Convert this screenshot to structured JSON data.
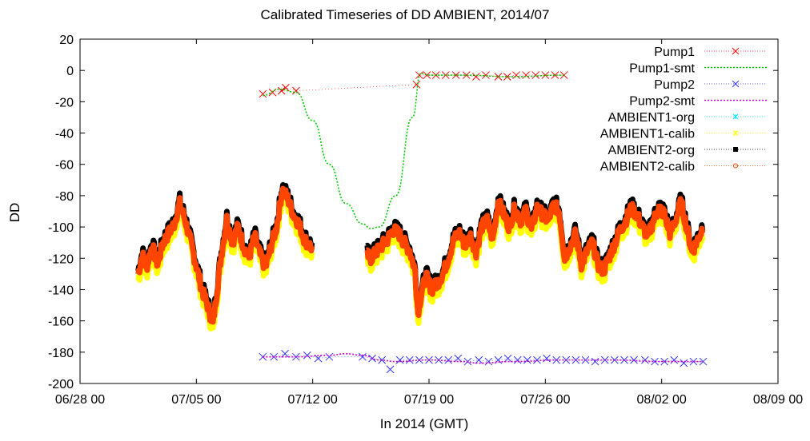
{
  "chart_data": {
    "type": "scatter",
    "title": "Calibrated Timeseries of DD AMBIENT, 2014/07",
    "xlabel": "In 2014 (GMT)",
    "ylabel": "DD",
    "xlim": [
      "2014-06-28T00:00",
      "2014-08-09T00:00"
    ],
    "ylim": [
      -200,
      20
    ],
    "x_ticks": [
      "06/28 00",
      "07/05 00",
      "07/12 00",
      "07/19 00",
      "07/26 00",
      "08/02 00",
      "08/09 00"
    ],
    "y_ticks": [
      20,
      0,
      -20,
      -40,
      -60,
      -80,
      -100,
      -120,
      -140,
      -160,
      -180,
      -200
    ],
    "grid": false,
    "legend_position": "top-right",
    "legend": [
      "Pump1",
      "Pump1-smt",
      "Pump2",
      "Pump2-smt",
      "AMBIENT1-org",
      "AMBIENT1-calib",
      "AMBIENT2-org",
      "AMBIENT2-calib"
    ],
    "colors": {
      "Pump1": "#ff0000",
      "Pump1-smt": "#00cc00",
      "Pump2": "#3333ff",
      "Pump2-smt": "#cc00cc",
      "AMBIENT1-org": "#00e5ff",
      "AMBIENT1-calib": "#ffff00",
      "AMBIENT2-org": "#000000",
      "AMBIENT2-calib": "#ff4500"
    },
    "series": [
      {
        "name": "Pump1",
        "marker": "x",
        "points": [
          [
            "2014-07-09T00:00",
            -15
          ],
          [
            "2014-07-09T14:00",
            -14
          ],
          [
            "2014-07-10T03:00",
            -13
          ],
          [
            "2014-07-10T09:00",
            -11
          ],
          [
            "2014-07-11T00:00",
            -13
          ],
          [
            "2014-07-18T06:00",
            -9
          ],
          [
            "2014-07-18T10:00",
            -3
          ],
          [
            "2014-07-18T21:00",
            -3
          ],
          [
            "2014-07-19T10:00",
            -3
          ],
          [
            "2014-07-20T00:00",
            -3
          ],
          [
            "2014-07-20T15:00",
            -3
          ],
          [
            "2014-07-21T06:00",
            -3
          ],
          [
            "2014-07-21T20:00",
            -4
          ],
          [
            "2014-07-22T10:00",
            -3
          ],
          [
            "2014-07-23T04:00",
            -4
          ],
          [
            "2014-07-23T17:00",
            -4
          ],
          [
            "2014-07-24T06:00",
            -3
          ],
          [
            "2014-07-24T20:00",
            -3
          ],
          [
            "2014-07-25T10:00",
            -3
          ],
          [
            "2014-07-26T00:00",
            -3
          ],
          [
            "2014-07-26T14:00",
            -3
          ],
          [
            "2014-07-27T03:00",
            -3
          ]
        ]
      },
      {
        "name": "Pump1-smt",
        "points": [
          [
            "2014-07-09T00:00",
            -16
          ],
          [
            "2014-07-10T00:00",
            -12
          ],
          [
            "2014-07-11T00:00",
            -14
          ],
          [
            "2014-07-12T00:00",
            -32
          ],
          [
            "2014-07-13T00:00",
            -60
          ],
          [
            "2014-07-14T00:00",
            -85
          ],
          [
            "2014-07-15T00:00",
            -98
          ],
          [
            "2014-07-15T12:00",
            -101
          ],
          [
            "2014-07-16T00:00",
            -100
          ],
          [
            "2014-07-17T00:00",
            -80
          ],
          [
            "2014-07-18T00:00",
            -30
          ],
          [
            "2014-07-18T12:00",
            -2
          ],
          [
            "2014-07-19T00:00",
            -3
          ],
          [
            "2014-07-21T00:00",
            -3
          ],
          [
            "2014-07-24T00:00",
            -4
          ],
          [
            "2014-07-27T03:00",
            -3
          ]
        ]
      },
      {
        "name": "Pump2",
        "marker": "x",
        "points": [
          [
            "2014-07-09T00:00",
            -183
          ],
          [
            "2014-07-09T16:00",
            -183
          ],
          [
            "2014-07-10T08:00",
            -181
          ],
          [
            "2014-07-11T00:00",
            -183
          ],
          [
            "2014-07-11T16:00",
            -182
          ],
          [
            "2014-07-12T08:00",
            -184
          ],
          [
            "2014-07-13T00:00",
            -183
          ],
          [
            "2014-07-15T00:00",
            -183
          ],
          [
            "2014-07-15T14:00",
            -184
          ],
          [
            "2014-07-16T04:00",
            -185
          ],
          [
            "2014-07-16T16:00",
            -191
          ],
          [
            "2014-07-17T06:00",
            -185
          ],
          [
            "2014-07-17T20:00",
            -185
          ],
          [
            "2014-07-18T10:00",
            -185
          ],
          [
            "2014-07-19T00:00",
            -185
          ],
          [
            "2014-07-19T14:00",
            -185
          ],
          [
            "2014-07-20T04:00",
            -185
          ],
          [
            "2014-07-20T18:00",
            -184
          ],
          [
            "2014-07-21T08:00",
            -186
          ],
          [
            "2014-07-22T00:00",
            -185
          ],
          [
            "2014-07-22T14:00",
            -186
          ],
          [
            "2014-07-23T04:00",
            -185
          ],
          [
            "2014-07-23T18:00",
            -184
          ],
          [
            "2014-07-24T08:00",
            -185
          ],
          [
            "2014-07-24T22:00",
            -185
          ],
          [
            "2014-07-25T12:00",
            -185
          ],
          [
            "2014-07-26T02:00",
            -184
          ],
          [
            "2014-07-26T16:00",
            -185
          ],
          [
            "2014-07-27T06:00",
            -185
          ],
          [
            "2014-07-27T20:00",
            -185
          ],
          [
            "2014-07-28T10:00",
            -185
          ],
          [
            "2014-07-29T00:00",
            -186
          ],
          [
            "2014-07-29T14:00",
            -185
          ],
          [
            "2014-07-30T04:00",
            -185
          ],
          [
            "2014-07-30T18:00",
            -185
          ],
          [
            "2014-07-31T08:00",
            -185
          ],
          [
            "2014-08-01T00:00",
            -185
          ],
          [
            "2014-08-01T14:00",
            -186
          ],
          [
            "2014-08-02T04:00",
            -186
          ],
          [
            "2014-08-02T18:00",
            -185
          ],
          [
            "2014-08-03T08:00",
            -187
          ],
          [
            "2014-08-03T22:00",
            -186
          ],
          [
            "2014-08-04T12:00",
            -186
          ]
        ]
      },
      {
        "name": "Pump2-smt",
        "points": [
          [
            "2014-07-09T00:00",
            -183
          ],
          [
            "2014-07-11T00:00",
            -183
          ],
          [
            "2014-07-13T00:00",
            -182
          ],
          [
            "2014-07-14T00:00",
            -181
          ],
          [
            "2014-07-15T00:00",
            -182
          ],
          [
            "2014-07-16T00:00",
            -185
          ],
          [
            "2014-07-17T00:00",
            -186
          ],
          [
            "2014-07-19T00:00",
            -185
          ],
          [
            "2014-07-21T00:00",
            -186
          ],
          [
            "2014-07-22T00:00",
            -187
          ],
          [
            "2014-07-24T00:00",
            -186
          ],
          [
            "2014-07-27T00:00",
            -185
          ],
          [
            "2014-07-30T00:00",
            -185
          ],
          [
            "2014-08-02T00:00",
            -186
          ],
          [
            "2014-08-04T12:00",
            -186
          ]
        ]
      },
      {
        "name": "AMBIENT2-calib",
        "points": [
          [
            "2014-07-01T12:00",
            -130
          ],
          [
            "2014-07-01T18:00",
            -118
          ],
          [
            "2014-07-02T00:00",
            -126
          ],
          [
            "2014-07-02T08:00",
            -112
          ],
          [
            "2014-07-02T16:00",
            -124
          ],
          [
            "2014-07-03T00:00",
            -110
          ],
          [
            "2014-07-03T08:00",
            -104
          ],
          [
            "2014-07-03T16:00",
            -98
          ],
          [
            "2014-07-04T00:00",
            -85
          ],
          [
            "2014-07-04T08:00",
            -96
          ],
          [
            "2014-07-04T16:00",
            -110
          ],
          [
            "2014-07-05T00:00",
            -125
          ],
          [
            "2014-07-05T08:00",
            -140
          ],
          [
            "2014-07-05T16:00",
            -150
          ],
          [
            "2014-07-06T00:00",
            -162
          ],
          [
            "2014-07-06T06:00",
            -140
          ],
          [
            "2014-07-06T12:00",
            -118
          ],
          [
            "2014-07-06T20:00",
            -95
          ],
          [
            "2014-07-07T04:00",
            -110
          ],
          [
            "2014-07-07T12:00",
            -100
          ],
          [
            "2014-07-07T20:00",
            -112
          ],
          [
            "2014-07-08T04:00",
            -120
          ],
          [
            "2014-07-08T12:00",
            -106
          ],
          [
            "2014-07-08T20:00",
            -118
          ],
          [
            "2014-07-09T04:00",
            -126
          ],
          [
            "2014-07-09T12:00",
            -112
          ],
          [
            "2014-07-09T20:00",
            -100
          ],
          [
            "2014-07-10T04:00",
            -76
          ],
          [
            "2014-07-10T12:00",
            -82
          ],
          [
            "2014-07-10T20:00",
            -92
          ],
          [
            "2014-07-11T04:00",
            -98
          ],
          [
            "2014-07-11T12:00",
            -108
          ],
          [
            "2014-07-11T20:00",
            -112
          ],
          [
            "2014-07-12T00:00",
            -114
          ],
          [
            "2014-07-15T06:00",
            -118
          ],
          [
            "2014-07-15T12:00",
            -120
          ],
          [
            "2014-07-16T12:00",
            -108
          ],
          [
            "2014-07-16T20:00",
            -102
          ],
          [
            "2014-07-17T04:00",
            -104
          ],
          [
            "2014-07-17T12:00",
            -110
          ],
          [
            "2014-07-17T20:00",
            -115
          ],
          [
            "2014-07-18T04:00",
            -128
          ],
          [
            "2014-07-18T08:00",
            -155
          ],
          [
            "2014-07-18T14:00",
            -140
          ],
          [
            "2014-07-18T20:00",
            -132
          ],
          [
            "2014-07-19T04:00",
            -140
          ],
          [
            "2014-07-19T12:00",
            -136
          ],
          [
            "2014-07-19T20:00",
            -130
          ],
          [
            "2014-07-20T04:00",
            -120
          ],
          [
            "2014-07-20T12:00",
            -108
          ],
          [
            "2014-07-20T20:00",
            -104
          ],
          [
            "2014-07-21T04:00",
            -112
          ],
          [
            "2014-07-21T12:00",
            -106
          ],
          [
            "2014-07-21T20:00",
            -116
          ],
          [
            "2014-07-22T04:00",
            -100
          ],
          [
            "2014-07-22T12:00",
            -96
          ],
          [
            "2014-07-22T20:00",
            -108
          ],
          [
            "2014-07-23T04:00",
            -84
          ],
          [
            "2014-07-23T12:00",
            -92
          ],
          [
            "2014-07-23T20:00",
            -100
          ],
          [
            "2014-07-24T04:00",
            -88
          ],
          [
            "2014-07-24T12:00",
            -96
          ],
          [
            "2014-07-24T20:00",
            -90
          ],
          [
            "2014-07-25T04:00",
            -102
          ],
          [
            "2014-07-25T12:00",
            -88
          ],
          [
            "2014-07-25T20:00",
            -92
          ],
          [
            "2014-07-26T04:00",
            -96
          ],
          [
            "2014-07-26T12:00",
            -86
          ],
          [
            "2014-07-26T20:00",
            -90
          ],
          [
            "2014-07-27T04:00",
            -120
          ],
          [
            "2014-07-27T12:00",
            -112
          ],
          [
            "2014-07-27T20:00",
            -104
          ],
          [
            "2014-07-28T04:00",
            -124
          ],
          [
            "2014-07-28T12:00",
            -116
          ],
          [
            "2014-07-28T20:00",
            -110
          ],
          [
            "2014-07-29T04:00",
            -124
          ],
          [
            "2014-07-29T12:00",
            -128
          ],
          [
            "2014-07-30T12:00",
            -102
          ],
          [
            "2014-07-30T20:00",
            -96
          ],
          [
            "2014-07-31T04:00",
            -88
          ],
          [
            "2014-07-31T12:00",
            -92
          ],
          [
            "2014-07-31T20:00",
            -100
          ],
          [
            "2014-08-01T04:00",
            -106
          ],
          [
            "2014-08-01T12:00",
            -96
          ],
          [
            "2014-08-01T20:00",
            -88
          ],
          [
            "2014-08-02T04:00",
            -92
          ],
          [
            "2014-08-02T12:00",
            -104
          ],
          [
            "2014-08-02T20:00",
            -96
          ],
          [
            "2014-08-03T04:00",
            -84
          ],
          [
            "2014-08-03T12:00",
            -100
          ],
          [
            "2014-08-03T20:00",
            -116
          ],
          [
            "2014-08-04T04:00",
            -108
          ],
          [
            "2014-08-04T12:00",
            -100
          ]
        ]
      }
    ]
  }
}
